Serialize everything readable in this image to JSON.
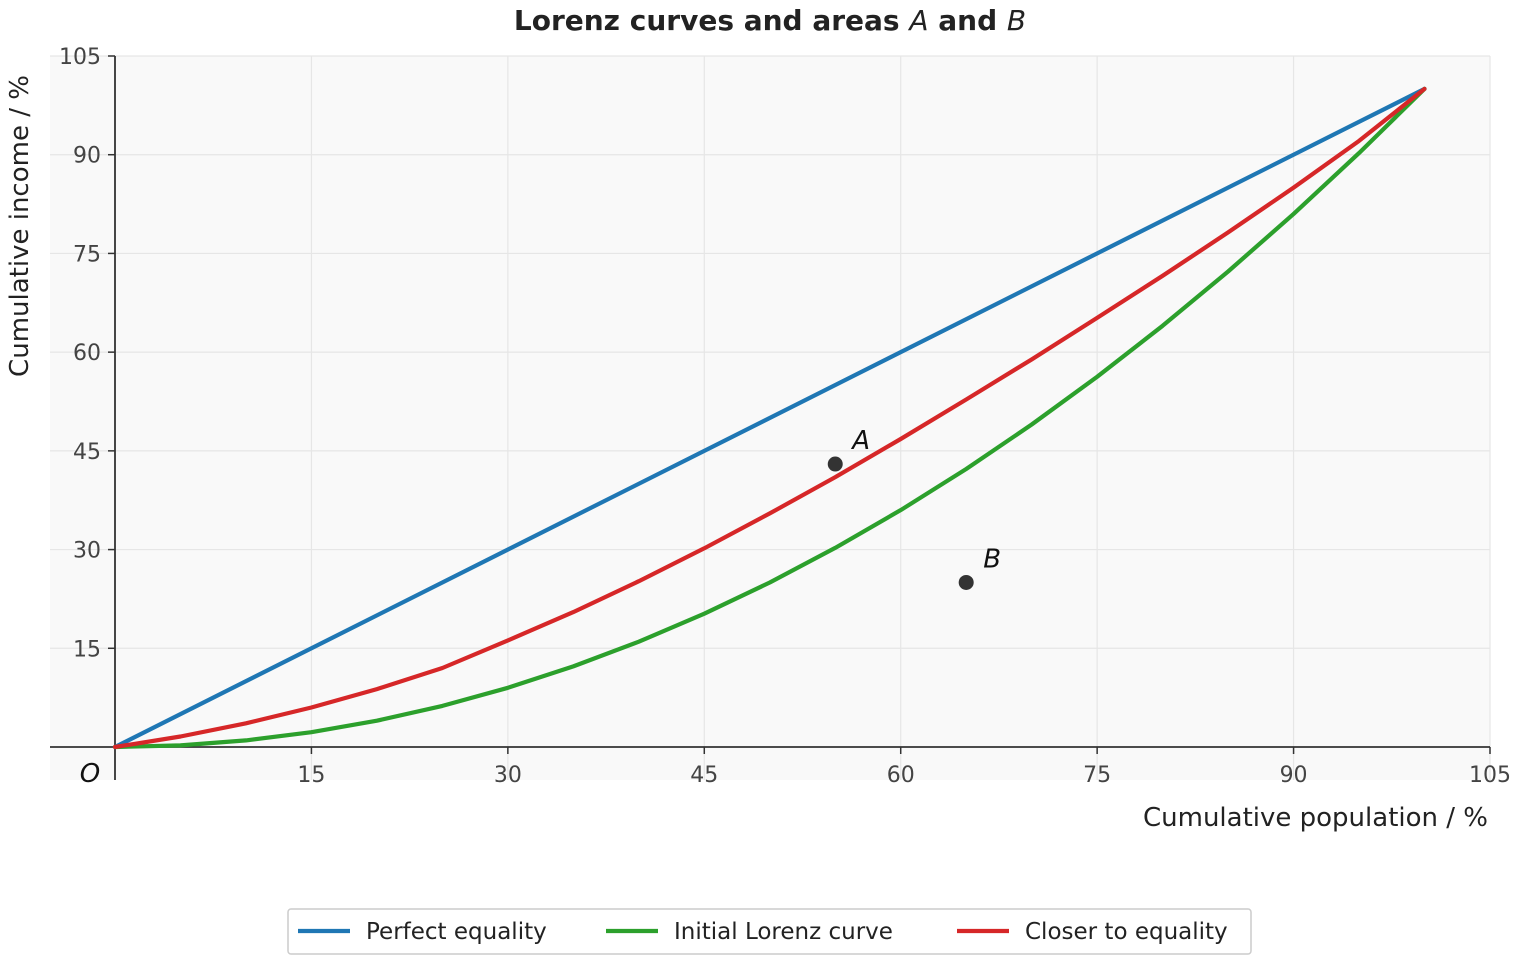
{
  "chart_data": {
    "type": "line",
    "title_parts": [
      "Lorenz curves and areas ",
      "A",
      " and ",
      "B"
    ],
    "xlabel": "Cumulative population / %",
    "ylabel": "Cumulative income / %",
    "origin_label": "O",
    "xlim": [
      0,
      105
    ],
    "ylim": [
      0,
      105
    ],
    "x_ticks": [
      15,
      30,
      45,
      60,
      75,
      90,
      105
    ],
    "y_ticks": [
      15,
      30,
      45,
      60,
      75,
      90,
      105
    ],
    "grid": true,
    "legend_position": "bottom-center",
    "series": [
      {
        "name": "Perfect equality",
        "color": "#1f77b4",
        "x": [
          0,
          100
        ],
        "y": [
          0,
          100
        ]
      },
      {
        "name": "Initial Lorenz curve",
        "color": "#2ca02c",
        "x": [
          0,
          5,
          10,
          15,
          20,
          25,
          30,
          35,
          40,
          45,
          50,
          55,
          60,
          65,
          70,
          75,
          80,
          85,
          90,
          95,
          100
        ],
        "y": [
          0,
          0.25,
          1,
          2.25,
          4,
          6.25,
          9,
          12.25,
          16,
          20.25,
          25,
          30.25,
          36,
          42.25,
          49,
          56.25,
          64,
          72.25,
          81,
          90.25,
          100
        ]
      },
      {
        "name": "Closer to equality",
        "color": "#d62728",
        "x": [
          0,
          5,
          10,
          15,
          20,
          25,
          30,
          35,
          40,
          45,
          50,
          55,
          60,
          65,
          70,
          75,
          80,
          85,
          90,
          95,
          100
        ],
        "y": [
          0,
          1.6,
          3.6,
          6,
          8.8,
          12,
          16.2,
          20.5,
          25.2,
          30.2,
          35.5,
          41,
          46.8,
          52.8,
          58.9,
          65.2,
          71.6,
          78.2,
          85,
          92.1,
          100
        ]
      }
    ],
    "points": [
      {
        "label": "A",
        "x": 55,
        "y": 43,
        "color": "#333333"
      },
      {
        "label": "B",
        "x": 65,
        "y": 25,
        "color": "#333333"
      }
    ],
    "colors": {
      "plot_background": "#f9f9f9",
      "grid": "#e6e6e6",
      "axis": "#333333"
    }
  }
}
